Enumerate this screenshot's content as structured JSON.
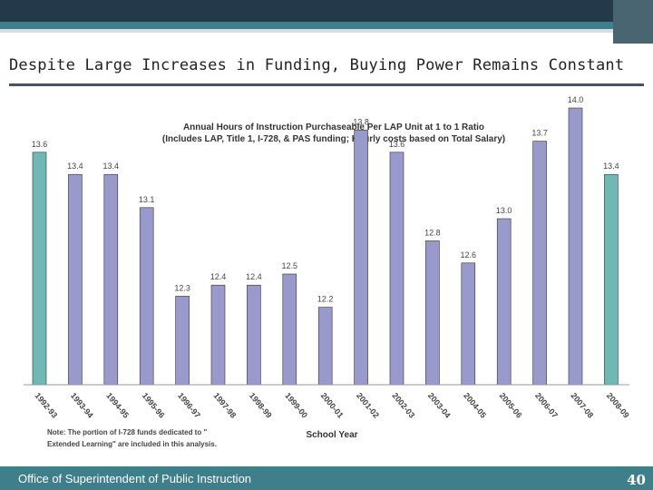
{
  "slide": {
    "title": "Despite Large Increases in Funding, Buying Power Remains Constant",
    "footer": "Office of Superintendent of Public Instruction",
    "page_number": "40"
  },
  "chart_data": {
    "type": "bar",
    "title": "Annual Hours of Instruction Purchaseable Per LAP Unit at 1 to 1 Ratio",
    "subtitle": "(Includes LAP, Title 1, I-728, & PAS funding; Hourly costs based on Total Salary)",
    "xlabel": "School Year",
    "ylabel": "",
    "categories": [
      "1992-93",
      "1993-94",
      "1994-95",
      "1995-96",
      "1996-97",
      "1997-98",
      "1998-99",
      "1999-00",
      "2000-01",
      "2001-02",
      "2002-03",
      "2003-04",
      "2004-05",
      "2005-06",
      "2006-07",
      "2007-08",
      "2008-09"
    ],
    "values": [
      13.6,
      13.4,
      13.4,
      13.1,
      12.3,
      12.4,
      12.4,
      12.5,
      12.2,
      13.8,
      13.6,
      12.8,
      12.6,
      13.0,
      13.7,
      14.0,
      13.4
    ],
    "value_labels": [
      "13.6",
      "13.4",
      "13.4",
      "13.1",
      "12.3",
      "12.4",
      "12.4",
      "12.5",
      "12.2",
      "13.8",
      "13.6",
      "12.8",
      "12.6",
      "13.0",
      "13.7",
      "14.0",
      "13.4"
    ],
    "highlighted": [
      "1992-93",
      "2008-09"
    ],
    "colors": {
      "bar": "#9999cc",
      "highlight": "#6fb8b4",
      "grid": "#c0c0c0"
    },
    "note": "Note: The portion of I-728 funds dedicated to \"Extended Learning\" are included in this analysis.",
    "grid": false,
    "legend": "none"
  }
}
